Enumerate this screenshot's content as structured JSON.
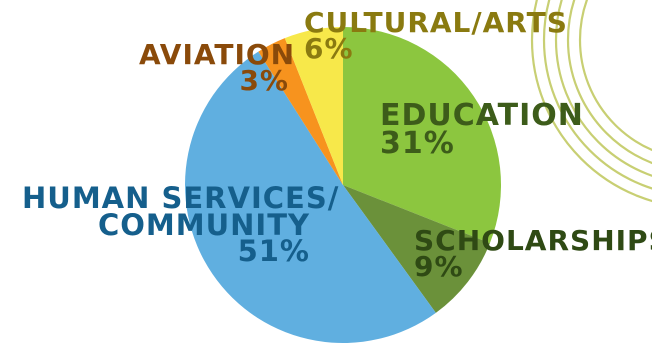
{
  "chart_data": {
    "type": "pie",
    "slices": [
      {
        "label": "EDUCATION",
        "percent_label": "31%",
        "value": 31,
        "color": "#8cc63f",
        "text_color": "#3d5c1a"
      },
      {
        "label": "SCHOLARSHIPS",
        "percent_label": "9%",
        "value": 9,
        "color": "#6b913a",
        "text_color": "#2f4a14"
      },
      {
        "label": "HUMAN SERVICES/ COMMUNITY",
        "label_lines": [
          "HUMAN SERVICES/",
          "COMMUNITY"
        ],
        "percent_label": "51%",
        "value": 51,
        "color": "#60afe0",
        "text_color": "#155f8c"
      },
      {
        "label": "AVIATION",
        "percent_label": "3%",
        "value": 3,
        "color": "#f7931e",
        "text_color": "#8a4a0a"
      },
      {
        "label": "CULTURAL/ARTS",
        "percent_label": "6%",
        "value": 6,
        "color": "#f7e84a",
        "text_color": "#8a7a10"
      }
    ],
    "decoration_color": "#c8cf73"
  }
}
